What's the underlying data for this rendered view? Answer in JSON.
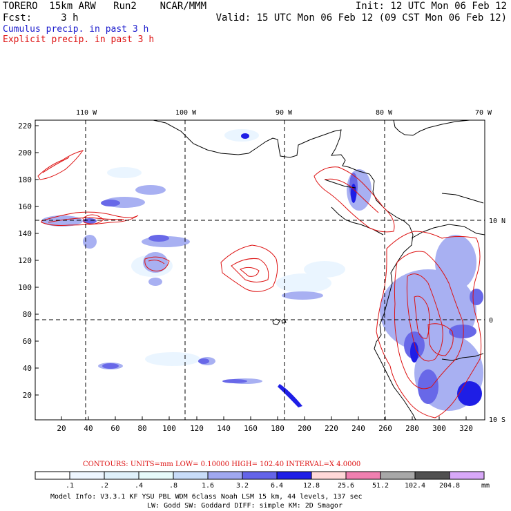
{
  "header": {
    "model_line": "TORERO  15km ARW   Run2    NCAR/MMM",
    "init_line": "Init: 12 UTC Mon 06 Feb 12",
    "fcst_line": "Fcst:     3 h",
    "valid_line": "Valid: 15 UTC Mon 06 Feb 12 (09 CST Mon 06 Feb 12)",
    "field1": "Cumulus precip. in past 3 h",
    "field2": "Explicit precip. in past 3 h",
    "field1_color": "#1a1acc",
    "field2_color": "#dd1111"
  },
  "map": {
    "lon_labels": [
      "110 W",
      "100 W",
      "90 W",
      "80 W",
      "70 W"
    ],
    "lat_labels": [
      "10 N",
      "0",
      "10 S"
    ],
    "y_ticks": [
      "220",
      "200",
      "180",
      "160",
      "140",
      "120",
      "100",
      "80",
      "60",
      "40",
      "20"
    ],
    "x_ticks": [
      "20",
      "40",
      "60",
      "80",
      "100",
      "120",
      "140",
      "160",
      "180",
      "200",
      "220",
      "240",
      "260",
      "280",
      "300",
      "320"
    ],
    "contour_color": "#dd1111",
    "gridline_style": "dashed"
  },
  "footer": {
    "contour_info": "CONTOURS:  UNITS=mm  LOW= 0.10000     HIGH=  102.40     INTERVAL=X  4.0000",
    "scale_labels": [
      ".1",
      ".2",
      ".4",
      ".8",
      "1.6",
      "3.2",
      "6.4",
      "12.8",
      "25.6",
      "51.2",
      "102.4",
      "204.8"
    ],
    "scale_unit": "mm",
    "scale_colors": [
      "#ffffff",
      "#eef6ff",
      "#dff0fa",
      "#e6fafa",
      "#c8dcf8",
      "#a0a8f0",
      "#6464e8",
      "#1e1ee6",
      "#ffd8d8",
      "#f080b0",
      "#a8a8a8",
      "#505050",
      "#d8a8f8"
    ],
    "model_info": "Model Info: V3.3.1    KF      YSU PBL   WDM 6class  Noah LSM  15 km,    44 levels,  137 sec",
    "model_info2": "LW: Godd SW: Goddard DIFF: simple KM: 2D Smagor"
  }
}
